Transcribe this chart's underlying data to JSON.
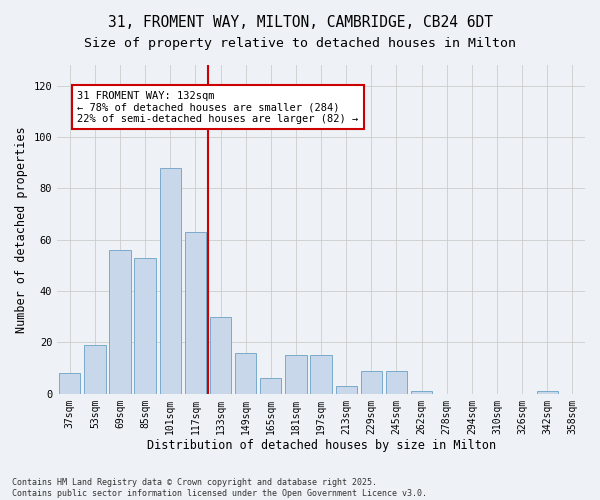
{
  "title_line1": "31, FROMENT WAY, MILTON, CAMBRIDGE, CB24 6DT",
  "title_line2": "Size of property relative to detached houses in Milton",
  "xlabel": "Distribution of detached houses by size in Milton",
  "ylabel": "Number of detached properties",
  "categories": [
    "37sqm",
    "53sqm",
    "69sqm",
    "85sqm",
    "101sqm",
    "117sqm",
    "133sqm",
    "149sqm",
    "165sqm",
    "181sqm",
    "197sqm",
    "213sqm",
    "229sqm",
    "245sqm",
    "262sqm",
    "278sqm",
    "294sqm",
    "310sqm",
    "326sqm",
    "342sqm",
    "358sqm"
  ],
  "values": [
    8,
    19,
    56,
    53,
    88,
    63,
    30,
    16,
    6,
    15,
    15,
    3,
    9,
    9,
    1,
    0,
    0,
    0,
    0,
    1,
    0
  ],
  "bar_color": "#c8d8ea",
  "bar_edge_color": "#7aaaca",
  "red_line_index": 6,
  "red_line_color": "#cc0000",
  "annotation_text": "31 FROMENT WAY: 132sqm\n← 78% of detached houses are smaller (284)\n22% of semi-detached houses are larger (82) →",
  "annotation_box_color": "#ffffff",
  "annotation_box_edge_color": "#cc0000",
  "ylim": [
    0,
    128
  ],
  "yticks": [
    0,
    20,
    40,
    60,
    80,
    100,
    120
  ],
  "grid_color": "#cccccc",
  "background_color": "#eef2f6",
  "footer_text": "Contains HM Land Registry data © Crown copyright and database right 2025.\nContains public sector information licensed under the Open Government Licence v3.0.",
  "title_fontsize": 10.5,
  "subtitle_fontsize": 9.5,
  "axis_label_fontsize": 8.5,
  "tick_fontsize": 7,
  "annotation_fontsize": 7.5,
  "footer_fontsize": 6
}
